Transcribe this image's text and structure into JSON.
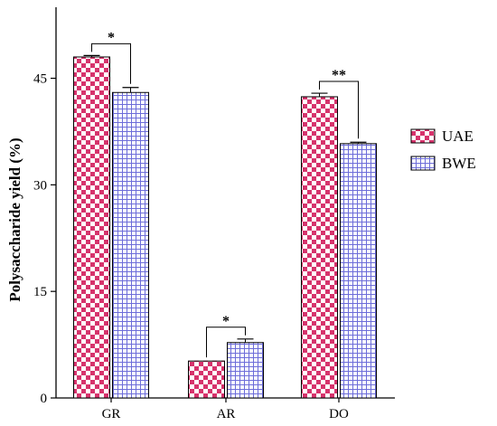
{
  "chart_data": {
    "type": "bar",
    "ylabel": "Polysaccharide yield (%)",
    "xlabel": "",
    "title": "",
    "ylim": [
      0,
      55
    ],
    "yticks": [
      0,
      15,
      30,
      45
    ],
    "categories": [
      "GR",
      "AR",
      "DO"
    ],
    "series": [
      {
        "name": "UAE",
        "values": [
          48.0,
          5.2,
          42.4
        ],
        "errors": [
          0.2,
          0.0,
          0.5
        ],
        "color": "#d6336c",
        "pattern": "checkerboard"
      },
      {
        "name": "BWE",
        "values": [
          43.0,
          7.8,
          35.8
        ],
        "errors": [
          0.7,
          0.5,
          0.2
        ],
        "color": "#6c6cd9",
        "pattern": "grid"
      }
    ],
    "significance": [
      {
        "category": "GR",
        "label": "*"
      },
      {
        "category": "AR",
        "label": "*"
      },
      {
        "category": "DO",
        "label": "**"
      }
    ],
    "legend": {
      "placement": "right",
      "entries": [
        "UAE",
        "BWE"
      ]
    },
    "grid": false
  }
}
